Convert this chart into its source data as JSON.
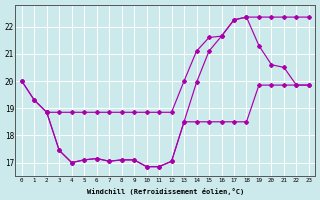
{
  "xlabel": "Windchill (Refroidissement éolien,°C)",
  "background_color": "#cce9ec",
  "line_color": "#aa00aa",
  "xlim_min": -0.5,
  "xlim_max": 23.5,
  "ylim_min": 16.5,
  "ylim_max": 22.8,
  "xticks": [
    0,
    1,
    2,
    3,
    4,
    5,
    6,
    7,
    8,
    9,
    10,
    11,
    12,
    13,
    14,
    15,
    16,
    17,
    18,
    19,
    20,
    21,
    22,
    23
  ],
  "yticks": [
    17,
    18,
    19,
    20,
    21,
    22
  ],
  "curve1_x": [
    0,
    1,
    2,
    3,
    4,
    5,
    6,
    7,
    8,
    9,
    10,
    11,
    12,
    13,
    14,
    15,
    16,
    17,
    18,
    19,
    20,
    21,
    22,
    23
  ],
  "curve1_y": [
    20.0,
    19.3,
    18.85,
    17.45,
    17.0,
    17.1,
    17.15,
    17.05,
    17.1,
    17.1,
    16.85,
    16.85,
    17.05,
    18.5,
    18.5,
    18.5,
    18.5,
    18.5,
    18.5,
    19.85,
    19.85,
    19.85,
    19.85,
    19.85
  ],
  "curve2_x": [
    0,
    1,
    2,
    3,
    4,
    5,
    6,
    7,
    8,
    9,
    10,
    11,
    12,
    13,
    14,
    15,
    16,
    17,
    18,
    19,
    20,
    21,
    22,
    23
  ],
  "curve2_y": [
    20.0,
    19.3,
    18.85,
    18.85,
    18.85,
    18.85,
    18.85,
    18.85,
    18.85,
    18.85,
    18.85,
    18.85,
    18.85,
    20.0,
    21.1,
    21.6,
    21.65,
    22.25,
    22.35,
    22.35,
    22.35,
    22.35,
    22.35,
    22.35
  ],
  "curve3_x": [
    2,
    3,
    4,
    5,
    6,
    7,
    8,
    9,
    10,
    11,
    12,
    13,
    14,
    15,
    16,
    17,
    18,
    19,
    20,
    21,
    22,
    23
  ],
  "curve3_y": [
    18.85,
    17.45,
    17.0,
    17.1,
    17.15,
    17.05,
    17.1,
    17.1,
    16.85,
    16.85,
    17.05,
    18.5,
    19.95,
    21.1,
    21.65,
    22.25,
    22.35,
    21.3,
    20.6,
    20.5,
    19.85,
    19.85
  ]
}
